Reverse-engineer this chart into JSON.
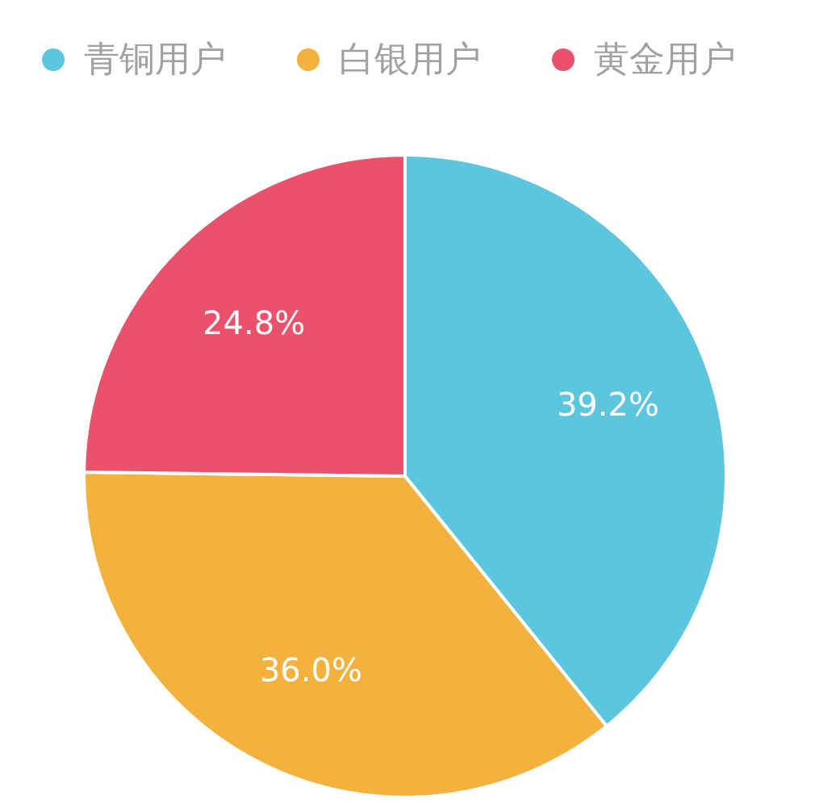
{
  "chart_data": {
    "type": "pie",
    "categories": [
      "青铜用户",
      "白银用户",
      "黄金用户"
    ],
    "values": [
      39.2,
      36.0,
      24.8
    ],
    "colors": [
      "#5bc6dd",
      "#f3b13e",
      "#e9526a"
    ],
    "value_labels": [
      "39.2%",
      "36.0%",
      "24.8%"
    ],
    "legend": "top"
  }
}
